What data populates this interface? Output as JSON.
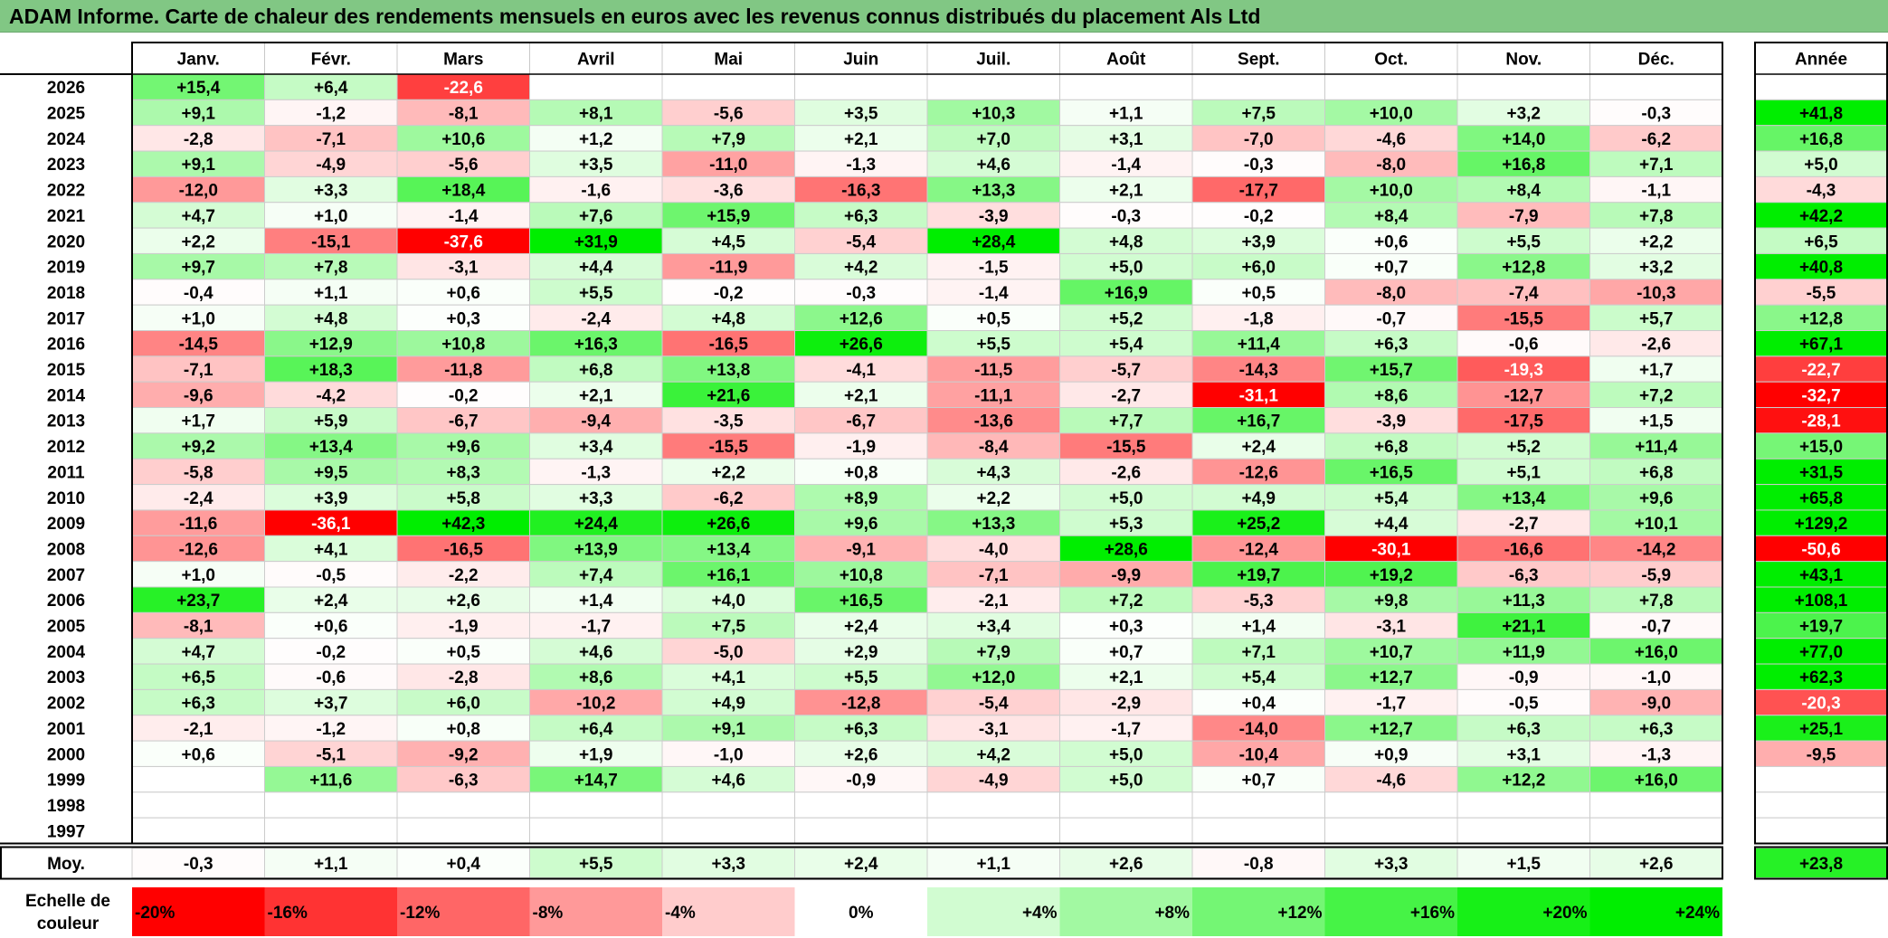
{
  "title": "ADAM Informe. Carte de chaleur des rendements mensuels en euros avec les revenus connus distribués du placement Als Ltd",
  "chart_data": {
    "type": "heatmap",
    "title": "ADAM Informe. Carte de chaleur des rendements mensuels en euros avec les revenus connus distribués du placement Als Ltd",
    "months": [
      "Janv.",
      "Févr.",
      "Mars",
      "Avril",
      "Mai",
      "Juin",
      "Juil.",
      "Août",
      "Sept.",
      "Oct.",
      "Nov.",
      "Déc."
    ],
    "year_header": "Année",
    "rows": [
      {
        "year": "2026",
        "months": [
          "+15,4",
          "+6,4",
          "-22,6",
          "",
          "",
          "",
          "",
          "",
          "",
          "",
          "",
          ""
        ],
        "annual": ""
      },
      {
        "year": "2025",
        "months": [
          "+9,1",
          "-1,2",
          "-8,1",
          "+8,1",
          "-5,6",
          "+3,5",
          "+10,3",
          "+1,1",
          "+7,5",
          "+10,0",
          "+3,2",
          "-0,3"
        ],
        "annual": "+41,8"
      },
      {
        "year": "2024",
        "months": [
          "-2,8",
          "-7,1",
          "+10,6",
          "+1,2",
          "+7,9",
          "+2,1",
          "+7,0",
          "+3,1",
          "-7,0",
          "-4,6",
          "+14,0",
          "-6,2"
        ],
        "annual": "+16,8"
      },
      {
        "year": "2023",
        "months": [
          "+9,1",
          "-4,9",
          "-5,6",
          "+3,5",
          "-11,0",
          "-1,3",
          "+4,6",
          "-1,4",
          "-0,3",
          "-8,0",
          "+16,8",
          "+7,1"
        ],
        "annual": "+5,0"
      },
      {
        "year": "2022",
        "months": [
          "-12,0",
          "+3,3",
          "+18,4",
          "-1,6",
          "-3,6",
          "-16,3",
          "+13,3",
          "+2,1",
          "-17,7",
          "+10,0",
          "+8,4",
          "-1,1"
        ],
        "annual": "-4,3"
      },
      {
        "year": "2021",
        "months": [
          "+4,7",
          "+1,0",
          "-1,4",
          "+7,6",
          "+15,9",
          "+6,3",
          "-3,9",
          "-0,3",
          "-0,2",
          "+8,4",
          "-7,9",
          "+7,8"
        ],
        "annual": "+42,2"
      },
      {
        "year": "2020",
        "months": [
          "+2,2",
          "-15,1",
          "-37,6",
          "+31,9",
          "+4,5",
          "-5,4",
          "+28,4",
          "+4,8",
          "+3,9",
          "+0,6",
          "+5,5",
          "+2,2"
        ],
        "annual": "+6,5"
      },
      {
        "year": "2019",
        "months": [
          "+9,7",
          "+7,8",
          "-3,1",
          "+4,4",
          "-11,9",
          "+4,2",
          "-1,5",
          "+5,0",
          "+6,0",
          "+0,7",
          "+12,8",
          "+3,2"
        ],
        "annual": "+40,8"
      },
      {
        "year": "2018",
        "months": [
          "-0,4",
          "+1,1",
          "+0,6",
          "+5,5",
          "-0,2",
          "-0,3",
          "-1,4",
          "+16,9",
          "+0,5",
          "-8,0",
          "-7,4",
          "-10,3"
        ],
        "annual": "-5,5"
      },
      {
        "year": "2017",
        "months": [
          "+1,0",
          "+4,8",
          "+0,3",
          "-2,4",
          "+4,8",
          "+12,6",
          "+0,5",
          "+5,2",
          "-1,8",
          "-0,7",
          "-15,5",
          "+5,7"
        ],
        "annual": "+12,8"
      },
      {
        "year": "2016",
        "months": [
          "-14,5",
          "+12,9",
          "+10,8",
          "+16,3",
          "-16,5",
          "+26,6",
          "+5,5",
          "+5,4",
          "+11,4",
          "+6,3",
          "-0,6",
          "-2,6"
        ],
        "annual": "+67,1"
      },
      {
        "year": "2015",
        "months": [
          "-7,1",
          "+18,3",
          "-11,8",
          "+6,8",
          "+13,8",
          "-4,1",
          "-11,5",
          "-5,7",
          "-14,3",
          "+15,7",
          "-19,3",
          "+1,7"
        ],
        "annual": "-22,7"
      },
      {
        "year": "2014",
        "months": [
          "-9,6",
          "-4,2",
          "-0,2",
          "+2,1",
          "+21,6",
          "+2,1",
          "-11,1",
          "-2,7",
          "-31,1",
          "+8,6",
          "-12,7",
          "+7,2"
        ],
        "annual": "-32,7"
      },
      {
        "year": "2013",
        "months": [
          "+1,7",
          "+5,9",
          "-6,7",
          "-9,4",
          "-3,5",
          "-6,7",
          "-13,6",
          "+7,7",
          "+16,7",
          "-3,9",
          "-17,5",
          "+1,5"
        ],
        "annual": "-28,1"
      },
      {
        "year": "2012",
        "months": [
          "+9,2",
          "+13,4",
          "+9,6",
          "+3,4",
          "-15,5",
          "-1,9",
          "-8,4",
          "-15,5",
          "+2,4",
          "+6,8",
          "+5,2",
          "+11,4"
        ],
        "annual": "+15,0"
      },
      {
        "year": "2011",
        "months": [
          "-5,8",
          "+9,5",
          "+8,3",
          "-1,3",
          "+2,2",
          "+0,8",
          "+4,3",
          "-2,6",
          "-12,6",
          "+16,5",
          "+5,1",
          "+6,8"
        ],
        "annual": "+31,5"
      },
      {
        "year": "2010",
        "months": [
          "-2,4",
          "+3,9",
          "+5,8",
          "+3,3",
          "-6,2",
          "+8,9",
          "+2,2",
          "+5,0",
          "+4,9",
          "+5,4",
          "+13,4",
          "+9,6"
        ],
        "annual": "+65,8"
      },
      {
        "year": "2009",
        "months": [
          "-11,6",
          "-36,1",
          "+42,3",
          "+24,4",
          "+26,6",
          "+9,6",
          "+13,3",
          "+5,3",
          "+25,2",
          "+4,4",
          "-2,7",
          "+10,1"
        ],
        "annual": "+129,2"
      },
      {
        "year": "2008",
        "months": [
          "-12,6",
          "+4,1",
          "-16,5",
          "+13,9",
          "+13,4",
          "-9,1",
          "-4,0",
          "+28,6",
          "-12,4",
          "-30,1",
          "-16,6",
          "-14,2"
        ],
        "annual": "-50,6"
      },
      {
        "year": "2007",
        "months": [
          "+1,0",
          "-0,5",
          "-2,2",
          "+7,4",
          "+16,1",
          "+10,8",
          "-7,1",
          "-9,9",
          "+19,7",
          "+19,2",
          "-6,3",
          "-5,9"
        ],
        "annual": "+43,1"
      },
      {
        "year": "2006",
        "months": [
          "+23,7",
          "+2,4",
          "+2,6",
          "+1,4",
          "+4,0",
          "+16,5",
          "-2,1",
          "+7,2",
          "-5,3",
          "+9,8",
          "+11,3",
          "+7,8"
        ],
        "annual": "+108,1"
      },
      {
        "year": "2005",
        "months": [
          "-8,1",
          "+0,6",
          "-1,9",
          "-1,7",
          "+7,5",
          "+2,4",
          "+3,4",
          "+0,3",
          "+1,4",
          "-3,1",
          "+21,1",
          "-0,7"
        ],
        "annual": "+19,7"
      },
      {
        "year": "2004",
        "months": [
          "+4,7",
          "-0,2",
          "+0,5",
          "+4,6",
          "-5,0",
          "+2,9",
          "+7,9",
          "+0,7",
          "+7,1",
          "+10,7",
          "+11,9",
          "+16,0"
        ],
        "annual": "+77,0"
      },
      {
        "year": "2003",
        "months": [
          "+6,5",
          "-0,6",
          "-2,8",
          "+8,6",
          "+4,1",
          "+5,5",
          "+12,0",
          "+2,1",
          "+5,4",
          "+12,7",
          "-0,9",
          "-1,0"
        ],
        "annual": "+62,3"
      },
      {
        "year": "2002",
        "months": [
          "+6,3",
          "+3,7",
          "+6,0",
          "-10,2",
          "+4,9",
          "-12,8",
          "-5,4",
          "-2,9",
          "+0,4",
          "-1,7",
          "-0,5",
          "-9,0"
        ],
        "annual": "-20,3"
      },
      {
        "year": "2001",
        "months": [
          "-2,1",
          "-1,2",
          "+0,8",
          "+6,4",
          "+9,1",
          "+6,3",
          "-3,1",
          "-1,7",
          "-14,0",
          "+12,7",
          "+6,3",
          "+6,3"
        ],
        "annual": "+25,1"
      },
      {
        "year": "2000",
        "months": [
          "+0,6",
          "-5,1",
          "-9,2",
          "+1,9",
          "-1,0",
          "+2,6",
          "+4,2",
          "+5,0",
          "-10,4",
          "+0,9",
          "+3,1",
          "-1,3"
        ],
        "annual": "-9,5"
      },
      {
        "year": "1999",
        "months": [
          "",
          "+11,6",
          "-6,3",
          "+14,7",
          "+4,6",
          "-0,9",
          "-4,9",
          "+5,0",
          "+0,7",
          "-4,6",
          "+12,2",
          "+16,0"
        ],
        "annual": ""
      },
      {
        "year": "1998",
        "months": [
          "",
          "",
          "",
          "",
          "",
          "",
          "",
          "",
          "",
          "",
          "",
          ""
        ],
        "annual": ""
      },
      {
        "year": "1997",
        "months": [
          "",
          "",
          "",
          "",
          "",
          "",
          "",
          "",
          "",
          "",
          "",
          ""
        ],
        "annual": ""
      }
    ],
    "average": {
      "label": "Moy.",
      "months": [
        "-0,3",
        "+1,1",
        "+0,4",
        "+5,5",
        "+3,3",
        "+2,4",
        "+1,1",
        "+2,6",
        "-0,8",
        "+3,3",
        "+1,5",
        "+2,6"
      ],
      "annual": "+23,8"
    },
    "scale": {
      "label_line1": "Echelle de",
      "label_line2": "couleur",
      "steps": [
        {
          "label": "-20%",
          "value": -20,
          "align": "left"
        },
        {
          "label": "-16%",
          "value": -16,
          "align": "left"
        },
        {
          "label": "-12%",
          "value": -12,
          "align": "left"
        },
        {
          "label": "-8%",
          "value": -8,
          "align": "left"
        },
        {
          "label": "-4%",
          "value": -4,
          "align": "left"
        },
        {
          "label": "0%",
          "value": 0,
          "align": "center"
        },
        {
          "label": "+4%",
          "value": 4,
          "align": "right"
        },
        {
          "label": "+8%",
          "value": 8,
          "align": "right"
        },
        {
          "label": "+12%",
          "value": 12,
          "align": "right"
        },
        {
          "label": "+16%",
          "value": 16,
          "align": "right"
        },
        {
          "label": "+20%",
          "value": 20,
          "align": "right"
        },
        {
          "label": "+24%",
          "value": 24,
          "align": "right"
        }
      ]
    }
  }
}
